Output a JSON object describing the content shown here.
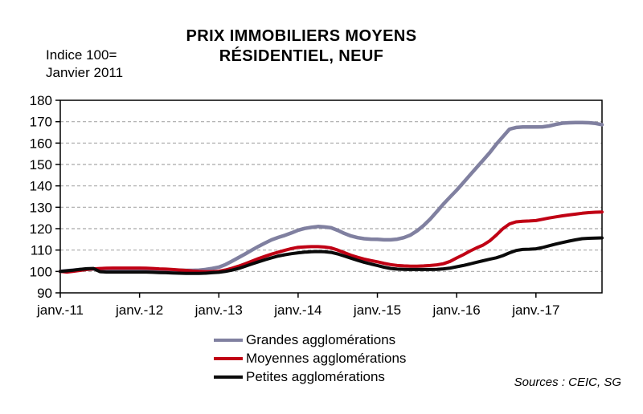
{
  "header": {
    "note_line1": "Indice 100=",
    "note_line2": "Janvier 2011",
    "title_line1": "PRIX IMMOBILIERS MOYENS",
    "title_line2": "RÉSIDENTIEL, NEUF"
  },
  "source_note": "Sources : CEIC, SG",
  "chart_data": {
    "type": "line",
    "title": "PRIX IMMOBILIERS MOYENS RÉSIDENTIEL, NEUF",
    "index_note": "Indice 100= Janvier 2011",
    "x_interval": "monthly",
    "x_start": "janv.-11",
    "x_end": "nov.-17",
    "x_tick_labels": [
      "janv.-11",
      "janv.-12",
      "janv.-13",
      "janv.-14",
      "janv.-15",
      "janv.-16",
      "janv.-17"
    ],
    "y_ticks": [
      90,
      100,
      110,
      120,
      130,
      140,
      150,
      160,
      170,
      180
    ],
    "ylim": [
      90,
      180
    ],
    "grid": "horizontal-dashed",
    "grid_color": "#A9A9A9",
    "axis_color": "#000000",
    "legend_position": "bottom-center",
    "series": [
      {
        "id": "grandes",
        "name": "Grandes agglomérations",
        "color": "#8080A0",
        "width": 4.5,
        "values": [
          100,
          100.3,
          100.6,
          100.9,
          101.1,
          101.2,
          101.1,
          101.0,
          101.0,
          101.0,
          101.0,
          101.0,
          100.9,
          100.9,
          100.8,
          100.8,
          100.7,
          100.6,
          100.6,
          100.5,
          100.5,
          100.6,
          100.9,
          101.4,
          102.0,
          103.2,
          104.8,
          106.5,
          108.2,
          110.0,
          111.7,
          113.3,
          114.8,
          115.9,
          116.9,
          118.0,
          119.3,
          120.1,
          120.6,
          121.0,
          120.8,
          120.4,
          119.2,
          117.8,
          116.6,
          115.8,
          115.3,
          115.1,
          115.0,
          114.8,
          114.8,
          115.1,
          115.8,
          117.0,
          119.0,
          121.5,
          124.5,
          128.0,
          131.5,
          134.8,
          138.0,
          141.5,
          145.0,
          148.5,
          152.0,
          155.5,
          159.5,
          163.0,
          166.5,
          167.3,
          167.5,
          167.5,
          167.5,
          167.6,
          168.0,
          168.7,
          169.3,
          169.5,
          169.6,
          169.6,
          169.5,
          169.2,
          168.6
        ]
      },
      {
        "id": "moyennes",
        "name": "Moyennes agglomérations",
        "color": "#C00014",
        "width": 4,
        "values": [
          100,
          99.7,
          100.1,
          100.5,
          100.9,
          101.2,
          101.4,
          101.5,
          101.6,
          101.6,
          101.6,
          101.6,
          101.6,
          101.5,
          101.4,
          101.2,
          101.1,
          100.9,
          100.7,
          100.5,
          100.2,
          100.0,
          99.9,
          99.9,
          100.1,
          100.7,
          101.5,
          102.5,
          103.6,
          104.8,
          106.0,
          107.1,
          108.1,
          109.0,
          109.9,
          110.7,
          111.3,
          111.5,
          111.6,
          111.6,
          111.4,
          111.0,
          110.0,
          108.8,
          107.6,
          106.6,
          105.8,
          105.1,
          104.5,
          103.8,
          103.2,
          102.8,
          102.6,
          102.5,
          102.5,
          102.6,
          102.8,
          103.1,
          103.6,
          104.7,
          106.3,
          107.8,
          109.5,
          111.0,
          112.3,
          114.3,
          117.0,
          120.0,
          122.2,
          123.2,
          123.5,
          123.6,
          123.8,
          124.4,
          125.0,
          125.5,
          126.0,
          126.4,
          126.8,
          127.2,
          127.5,
          127.7,
          127.8
        ]
      },
      {
        "id": "petites",
        "name": "Petites agglomérations",
        "color": "#0A0A0A",
        "width": 4,
        "values": [
          100,
          100.3,
          100.6,
          101.0,
          101.3,
          101.4,
          99.9,
          99.7,
          99.7,
          99.7,
          99.7,
          99.7,
          99.7,
          99.7,
          99.6,
          99.5,
          99.4,
          99.3,
          99.2,
          99.1,
          99.1,
          99.1,
          99.2,
          99.4,
          99.6,
          100.0,
          100.6,
          101.4,
          102.4,
          103.5,
          104.5,
          105.5,
          106.4,
          107.2,
          107.8,
          108.3,
          108.7,
          109.0,
          109.2,
          109.3,
          109.2,
          108.9,
          108.2,
          107.2,
          106.2,
          105.2,
          104.3,
          103.5,
          102.8,
          102.0,
          101.4,
          101.1,
          101.0,
          100.9,
          100.9,
          100.9,
          100.9,
          101.0,
          101.2,
          101.6,
          102.2,
          102.8,
          103.5,
          104.3,
          105.0,
          105.7,
          106.4,
          107.4,
          108.7,
          109.8,
          110.3,
          110.4,
          110.6,
          111.2,
          112.0,
          112.8,
          113.5,
          114.2,
          114.8,
          115.3,
          115.5,
          115.6,
          115.7
        ]
      }
    ]
  }
}
